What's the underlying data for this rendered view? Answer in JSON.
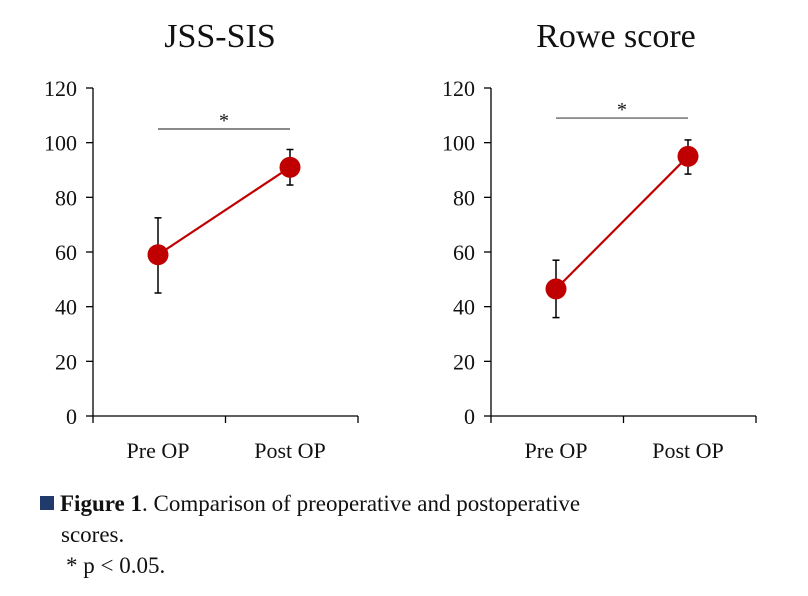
{
  "chart_data": [
    {
      "type": "line",
      "title": "JSS-SIS",
      "categories": [
        "Pre OP",
        "Post OP"
      ],
      "values": [
        59,
        91
      ],
      "error": [
        [
          45,
          72.5
        ],
        [
          84.5,
          97.5
        ]
      ],
      "ylim": [
        0,
        120
      ],
      "yticks": [
        "0",
        "20",
        "40",
        "60",
        "80",
        "100",
        "120"
      ],
      "ytick_values": [
        0,
        20,
        40,
        60,
        80,
        100,
        120
      ],
      "significance": {
        "label": "*",
        "level": 105
      },
      "color": "#c00000"
    },
    {
      "type": "line",
      "title": "Rowe score",
      "categories": [
        "Pre OP",
        "Post OP"
      ],
      "values": [
        46.5,
        95
      ],
      "error": [
        [
          36,
          57
        ],
        [
          88.5,
          101
        ]
      ],
      "ylim": [
        0,
        120
      ],
      "yticks": [
        "0",
        "20",
        "40",
        "60",
        "80",
        "100",
        "120"
      ],
      "ytick_values": [
        0,
        20,
        40,
        60,
        80,
        100,
        120
      ],
      "significance": {
        "label": "*",
        "level": 109
      },
      "color": "#c00000"
    }
  ],
  "caption": {
    "label": "Figure 1",
    "text_line1": ". Comparison of preoperative and postoperative",
    "text_line2": "scores.",
    "footnote": "* p < 0.05."
  },
  "colors": {
    "bullet": "#1f3a6b",
    "series": "#c00000"
  }
}
